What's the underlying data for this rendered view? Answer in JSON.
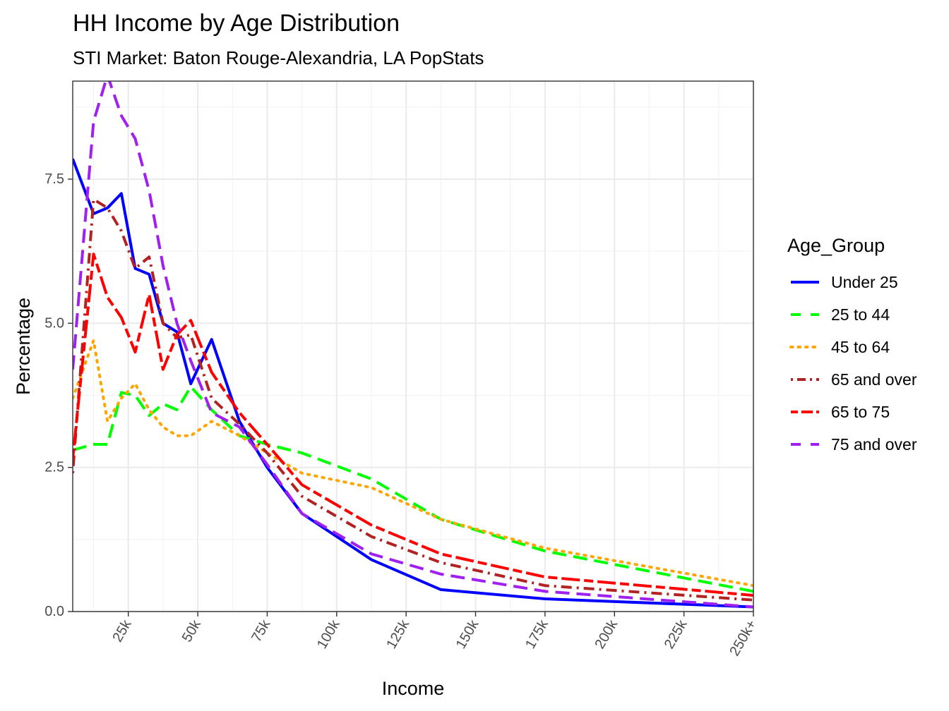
{
  "chart_data": {
    "type": "line",
    "title": "HH Income by Age Distribution",
    "subtitle": "STI Market: Baton Rouge-Alexandria, LA PopStats",
    "xlabel": "Income",
    "ylabel": "Percentage",
    "xlim": [
      5,
      250
    ],
    "ylim": [
      0,
      9.2
    ],
    "x_ticks": [
      {
        "value": 25,
        "label": "25k"
      },
      {
        "value": 50,
        "label": "50k"
      },
      {
        "value": 75,
        "label": "75k"
      },
      {
        "value": 100,
        "label": "100k"
      },
      {
        "value": 125,
        "label": "125k"
      },
      {
        "value": 150,
        "label": "150k"
      },
      {
        "value": 175,
        "label": "175k"
      },
      {
        "value": 200,
        "label": "200k"
      },
      {
        "value": 225,
        "label": "225k"
      },
      {
        "value": 250,
        "label": "250k+"
      }
    ],
    "y_ticks": [
      {
        "value": 0,
        "label": "0.0"
      },
      {
        "value": 2.5,
        "label": "2.5"
      },
      {
        "value": 5,
        "label": "5.0"
      },
      {
        "value": 7.5,
        "label": "7.5"
      }
    ],
    "grid": true,
    "legend": {
      "title": "Age_Group",
      "position": "right"
    },
    "x": [
      5,
      12.5,
      17.5,
      22.5,
      27.5,
      32.5,
      37.5,
      42.5,
      47.5,
      55,
      65,
      75,
      87.5,
      112.5,
      137.5,
      175,
      250
    ],
    "series": [
      {
        "name": "Under 25",
        "color": "#0000FF",
        "dash": "solid",
        "values": [
          7.85,
          6.9,
          7.0,
          7.25,
          5.95,
          5.85,
          5.0,
          4.85,
          3.95,
          4.72,
          3.3,
          2.5,
          1.7,
          0.9,
          0.38,
          0.22,
          0.08
        ]
      },
      {
        "name": "25 to 44",
        "color": "#00FF00",
        "dash": "longdash",
        "values": [
          2.8,
          2.9,
          2.9,
          3.8,
          3.75,
          3.4,
          3.6,
          3.5,
          3.9,
          3.5,
          3.05,
          2.9,
          2.75,
          2.3,
          1.6,
          1.05,
          0.35
        ]
      },
      {
        "name": "45 to 64",
        "color": "#FFA500",
        "dash": "dotted",
        "values": [
          3.7,
          4.7,
          3.3,
          3.7,
          3.95,
          3.5,
          3.2,
          3.05,
          3.05,
          3.3,
          3.05,
          2.75,
          2.4,
          2.15,
          1.6,
          1.1,
          0.45
        ]
      },
      {
        "name": "65 and over",
        "color": "#B22222",
        "dash": "dotdash",
        "values": [
          2.4,
          7.15,
          7.0,
          6.6,
          5.95,
          6.15,
          5.0,
          4.75,
          4.8,
          3.7,
          3.25,
          2.75,
          2.0,
          1.3,
          0.85,
          0.45,
          0.2
        ]
      },
      {
        "name": "65 to 75",
        "color": "#FF0000",
        "dash": "twodash",
        "values": [
          2.65,
          6.2,
          5.45,
          5.1,
          4.5,
          5.5,
          4.2,
          4.8,
          5.05,
          4.15,
          3.45,
          2.9,
          2.2,
          1.5,
          1.0,
          0.6,
          0.28
        ]
      },
      {
        "name": "75 and over",
        "color": "#A020F0",
        "dash": "longdash",
        "values": [
          4.2,
          8.5,
          9.3,
          8.6,
          8.2,
          7.3,
          6.0,
          5.0,
          4.35,
          3.45,
          3.2,
          2.55,
          1.7,
          1.0,
          0.65,
          0.35,
          0.08
        ]
      }
    ]
  }
}
